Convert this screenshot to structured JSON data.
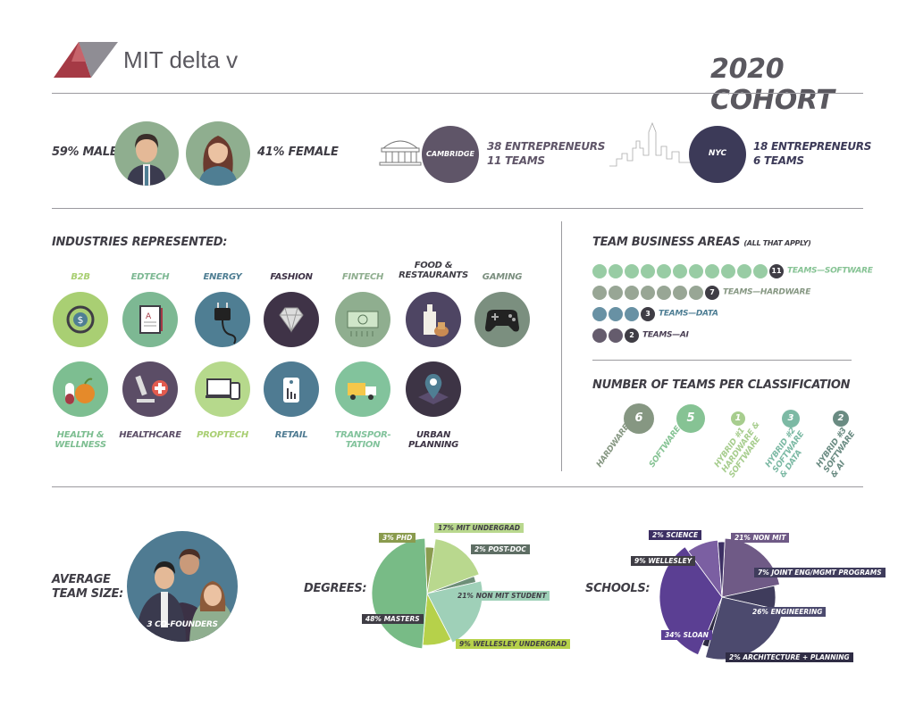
{
  "header": {
    "brand": "MIT delta v",
    "title": "2020 COHORT"
  },
  "demographics": {
    "male": "59% MALE",
    "female": "41% FEMALE",
    "cambridge": {
      "label": "CAMBRIDGE",
      "line1": "38 ENTREPRENEURS",
      "line2": "11 TEAMS"
    },
    "nyc": {
      "label": "NYC",
      "line1": "18 ENTREPRENEURS",
      "line2": "6 TEAMS"
    }
  },
  "industries": {
    "title": "INDUSTRIES REPRESENTED:",
    "items": [
      {
        "label": "B2B",
        "color": "#a9cf73",
        "icon": "money-icon"
      },
      {
        "label": "EDTECH",
        "color": "#7db893",
        "icon": "tablet-icon"
      },
      {
        "label": "ENERGY",
        "color": "#4f7e93",
        "icon": "plug-icon"
      },
      {
        "label": "FASHION",
        "color": "#3f3347",
        "icon": "diamond-icon"
      },
      {
        "label": "FINTECH",
        "color": "#8fae8f",
        "icon": "banknote-icon"
      },
      {
        "label": "FOOD & RESTAURANTS",
        "color": "#4e4563",
        "icon": "bottle-icon"
      },
      {
        "label": "GAMING",
        "color": "#7b8f7f",
        "icon": "gamepad-icon"
      },
      {
        "label": "HEALTH & WELLNESS",
        "color": "#7dbe91",
        "icon": "apple-pill-icon"
      },
      {
        "label": "HEALTHCARE",
        "color": "#5b4d66",
        "icon": "microscope-icon"
      },
      {
        "label": "PROPTECH",
        "color": "#b6d98c",
        "icon": "devices-icon"
      },
      {
        "label": "RETAIL",
        "color": "#4f7b92",
        "icon": "price-tag-icon"
      },
      {
        "label": "TRANSPOR-TATION",
        "color": "#82c39c",
        "icon": "truck-icon"
      },
      {
        "label": "URBAN PLANNING",
        "color": "#3d3445",
        "icon": "map-pin-icon"
      }
    ]
  },
  "business_areas": {
    "title": "TEAM BUSINESS AREAS",
    "subtitle": "(ALL THAT APPLY)",
    "rows": [
      {
        "count": "11",
        "label": "TEAMS—SOFTWARE",
        "color": "#86c394",
        "text_color": "#86c394"
      },
      {
        "count": "7",
        "label": "TEAMS—HARDWARE",
        "color": "#869782",
        "text_color": "#869782"
      },
      {
        "count": "3",
        "label": "TEAMS—DATA",
        "color": "#4e7e94",
        "text_color": "#4e7e94"
      },
      {
        "count": "2",
        "label": "TEAMS—AI",
        "color": "#4a3f54",
        "text_color": "#4a3f54"
      }
    ]
  },
  "classification": {
    "title": "NUMBER OF TEAMS PER CLASSIFICATION",
    "items": [
      {
        "count": "6",
        "label1": "HARDWARE",
        "label2": "",
        "label3": "",
        "color": "#869782"
      },
      {
        "count": "5",
        "label1": "SOFTWARE",
        "label2": "",
        "label3": "",
        "color": "#86c394"
      },
      {
        "count": "1",
        "label1": "HYBRID #1",
        "label2": "HARDWARE &",
        "label3": "SOFTWARE",
        "color": "#a7cd8e"
      },
      {
        "count": "3",
        "label1": "HYBRID #2",
        "label2": "SOFTWARE",
        "label3": "& DATA",
        "color": "#7cb9a4"
      },
      {
        "count": "2",
        "label1": "HYBRID #3",
        "label2": "SOFTWARE",
        "label3": "& AI",
        "color": "#6a8b82"
      }
    ]
  },
  "team_size": {
    "label1": "AVERAGE",
    "label2": "TEAM SIZE:",
    "value": "3 CO-FOUNDERS"
  },
  "chart_data": [
    {
      "type": "pie",
      "title": "DEGREES:",
      "labels": [
        "17% MIT UNDERGRAD",
        "2% POST-DOC",
        "21% NON MIT STUDENT",
        "9% WELLESLEY UNDERGRAD",
        "48% MASTERS",
        "3% PHD"
      ],
      "values": [
        17,
        2,
        21,
        9,
        48,
        3
      ],
      "colors": [
        "#b9d88e",
        "#6e8f78",
        "#9fd0b8",
        "#b6d14a",
        "#78bb86",
        "#8a9b4e"
      ]
    },
    {
      "type": "pie",
      "title": "SCHOOLS:",
      "labels": [
        "21% NON MIT",
        "7% JOINT ENG/MGMT PROGRAMS",
        "26% ENGINEERING",
        "2% ARCHITECTURE + PLANNING",
        "34% SLOAN",
        "9% WELLESLEY",
        "2% SCIENCE"
      ],
      "values": [
        21,
        7,
        26,
        2,
        34,
        9,
        2
      ],
      "colors": [
        "#6f5a86",
        "#3f3c5c",
        "#4c4a6e",
        "#2f2c44",
        "#5b3f93",
        "#7b5fa2",
        "#3c2f63"
      ]
    }
  ]
}
